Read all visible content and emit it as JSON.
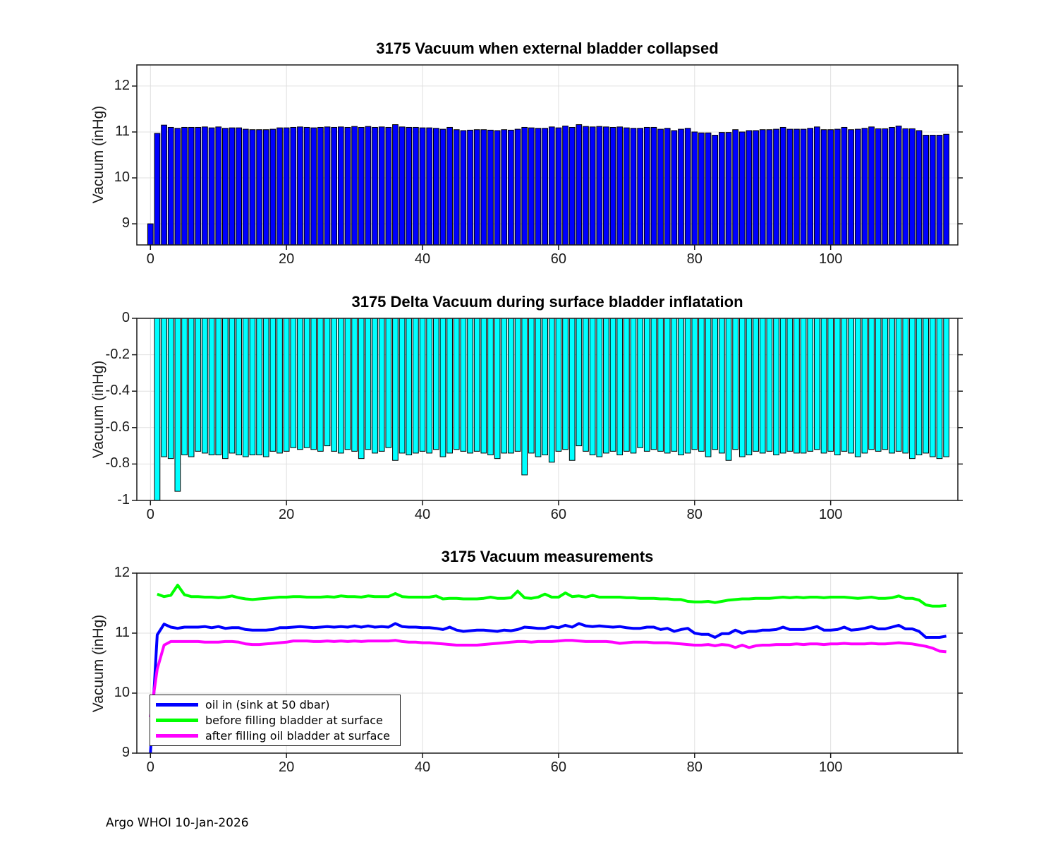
{
  "page": {
    "footer": "Argo WHOI 10-Jan-2026"
  },
  "colors": {
    "bar_blue": "#0000ff",
    "bar_cyan": "#00ffff",
    "line_blue": "#0000ff",
    "line_green": "#00ff00",
    "line_magenta": "#ff00ff",
    "axis": "#1a1a1a",
    "grid": "#e0e0e0"
  },
  "chart_data": [
    {
      "type": "bar",
      "title": "3175 Vacuum when external bladder collapsed",
      "ylabel": "Vacuum (inHg)",
      "color": "#0000ff",
      "grid": true,
      "xlim": [
        -2,
        118.7
      ],
      "ylim": [
        8.54,
        12.46
      ],
      "yticks": [
        9,
        10,
        11,
        12
      ],
      "xticks": [
        0,
        20,
        40,
        60,
        80,
        100
      ],
      "x_start": 0,
      "bar_base": "bottom",
      "values": [
        9.0,
        10.97,
        11.15,
        11.1,
        11.08,
        11.1,
        11.1,
        11.1,
        11.11,
        11.09,
        11.11,
        11.08,
        11.09,
        11.09,
        11.06,
        11.05,
        11.05,
        11.05,
        11.06,
        11.09,
        11.09,
        11.1,
        11.11,
        11.1,
        11.09,
        11.1,
        11.11,
        11.1,
        11.11,
        11.1,
        11.12,
        11.1,
        11.12,
        11.1,
        11.11,
        11.1,
        11.16,
        11.11,
        11.1,
        11.1,
        11.09,
        11.09,
        11.08,
        11.06,
        11.1,
        11.05,
        11.03,
        11.04,
        11.05,
        11.05,
        11.04,
        11.03,
        11.05,
        11.04,
        11.06,
        11.1,
        11.09,
        11.08,
        11.08,
        11.11,
        11.09,
        11.13,
        11.1,
        11.16,
        11.12,
        11.11,
        11.12,
        11.11,
        11.1,
        11.11,
        11.09,
        11.08,
        11.08,
        11.1,
        11.1,
        11.06,
        11.08,
        11.03,
        11.06,
        11.08,
        11.0,
        10.98,
        10.98,
        10.93,
        10.99,
        10.99,
        11.05,
        11.0,
        11.03,
        11.03,
        11.05,
        11.05,
        11.06,
        11.1,
        11.06,
        11.06,
        11.06,
        11.08,
        11.11,
        11.05,
        11.05,
        11.06,
        11.1,
        11.05,
        11.06,
        11.08,
        11.11,
        11.07,
        11.07,
        11.1,
        11.13,
        11.07,
        11.07,
        11.03,
        10.93,
        10.93,
        10.93,
        10.95
      ]
    },
    {
      "type": "bar",
      "title": "3175 Delta Vacuum during surface bladder inflatation",
      "ylabel": "Vacuum (inHg)",
      "color": "#00ffff",
      "grid": true,
      "xlim": [
        -2,
        118.7
      ],
      "ylim": [
        -1,
        0
      ],
      "yticks": [
        0,
        -0.2,
        -0.4,
        -0.6,
        -0.8,
        -1
      ],
      "xticks": [
        0,
        20,
        40,
        60,
        80,
        100
      ],
      "x_start": 1,
      "bar_base": 0,
      "values": [
        -1.0,
        -0.76,
        -0.77,
        -0.95,
        -0.75,
        -0.76,
        -0.73,
        -0.74,
        -0.75,
        -0.75,
        -0.77,
        -0.74,
        -0.75,
        -0.76,
        -0.75,
        -0.75,
        -0.76,
        -0.73,
        -0.74,
        -0.73,
        -0.71,
        -0.72,
        -0.71,
        -0.72,
        -0.73,
        -0.7,
        -0.73,
        -0.74,
        -0.72,
        -0.73,
        -0.77,
        -0.72,
        -0.74,
        -0.73,
        -0.71,
        -0.78,
        -0.74,
        -0.75,
        -0.74,
        -0.73,
        -0.74,
        -0.72,
        -0.76,
        -0.74,
        -0.72,
        -0.73,
        -0.74,
        -0.73,
        -0.74,
        -0.75,
        -0.77,
        -0.74,
        -0.74,
        -0.73,
        -0.86,
        -0.74,
        -0.76,
        -0.75,
        -0.79,
        -0.73,
        -0.72,
        -0.78,
        -0.7,
        -0.73,
        -0.75,
        -0.76,
        -0.74,
        -0.73,
        -0.75,
        -0.73,
        -0.74,
        -0.71,
        -0.73,
        -0.72,
        -0.73,
        -0.74,
        -0.73,
        -0.75,
        -0.74,
        -0.72,
        -0.73,
        -0.76,
        -0.72,
        -0.74,
        -0.78,
        -0.72,
        -0.76,
        -0.75,
        -0.73,
        -0.74,
        -0.73,
        -0.75,
        -0.74,
        -0.73,
        -0.74,
        -0.74,
        -0.73,
        -0.72,
        -0.74,
        -0.73,
        -0.75,
        -0.73,
        -0.74,
        -0.76,
        -0.74,
        -0.72,
        -0.73,
        -0.72,
        -0.74,
        -0.73,
        -0.74,
        -0.77,
        -0.75,
        -0.74,
        -0.76,
        -0.77,
        -0.76
      ]
    },
    {
      "type": "line",
      "title": "3175 Vacuum measurements",
      "ylabel": "Vacuum (inHg)",
      "grid": true,
      "xlim": [
        -2,
        118.7
      ],
      "ylim": [
        9,
        12
      ],
      "yticks": [
        9,
        10,
        11,
        12
      ],
      "xticks": [
        0,
        20,
        40,
        60,
        80,
        100
      ],
      "legend_position": "lower-left",
      "series": [
        {
          "name": "oil in (sink at 50 dbar)",
          "color": "#0000ff",
          "x_start": 0,
          "values": [
            9.0,
            10.97,
            11.15,
            11.1,
            11.08,
            11.1,
            11.1,
            11.1,
            11.11,
            11.09,
            11.11,
            11.08,
            11.09,
            11.09,
            11.06,
            11.05,
            11.05,
            11.05,
            11.06,
            11.09,
            11.09,
            11.1,
            11.11,
            11.1,
            11.09,
            11.1,
            11.11,
            11.1,
            11.11,
            11.1,
            11.12,
            11.1,
            11.12,
            11.1,
            11.11,
            11.1,
            11.16,
            11.11,
            11.1,
            11.1,
            11.09,
            11.09,
            11.08,
            11.06,
            11.1,
            11.05,
            11.03,
            11.04,
            11.05,
            11.05,
            11.04,
            11.03,
            11.05,
            11.04,
            11.06,
            11.1,
            11.09,
            11.08,
            11.08,
            11.11,
            11.09,
            11.13,
            11.1,
            11.16,
            11.12,
            11.11,
            11.12,
            11.11,
            11.1,
            11.11,
            11.09,
            11.08,
            11.08,
            11.1,
            11.1,
            11.06,
            11.08,
            11.03,
            11.06,
            11.08,
            11.0,
            10.98,
            10.98,
            10.93,
            10.99,
            10.99,
            11.05,
            11.0,
            11.03,
            11.03,
            11.05,
            11.05,
            11.06,
            11.1,
            11.06,
            11.06,
            11.06,
            11.08,
            11.11,
            11.05,
            11.05,
            11.06,
            11.1,
            11.05,
            11.06,
            11.08,
            11.11,
            11.07,
            11.07,
            11.1,
            11.13,
            11.07,
            11.07,
            11.03,
            10.93,
            10.93,
            10.93,
            10.95
          ]
        },
        {
          "name": "before filling bladder at surface",
          "color": "#00ff00",
          "x_start": 1,
          "values": [
            11.65,
            11.61,
            11.63,
            11.8,
            11.64,
            11.61,
            11.61,
            11.6,
            11.6,
            11.59,
            11.6,
            11.62,
            11.59,
            11.57,
            11.56,
            11.57,
            11.58,
            11.59,
            11.6,
            11.6,
            11.61,
            11.61,
            11.6,
            11.6,
            11.6,
            11.61,
            11.6,
            11.62,
            11.61,
            11.61,
            11.6,
            11.62,
            11.61,
            11.61,
            11.61,
            11.66,
            11.61,
            11.6,
            11.6,
            11.6,
            11.6,
            11.62,
            11.57,
            11.58,
            11.58,
            11.57,
            11.57,
            11.57,
            11.58,
            11.6,
            11.58,
            11.58,
            11.59,
            11.7,
            11.59,
            11.58,
            11.6,
            11.65,
            11.6,
            11.6,
            11.67,
            11.61,
            11.62,
            11.6,
            11.63,
            11.6,
            11.6,
            11.6,
            11.6,
            11.59,
            11.59,
            11.58,
            11.58,
            11.58,
            11.57,
            11.57,
            11.56,
            11.56,
            11.53,
            11.52,
            11.52,
            11.53,
            11.51,
            11.53,
            11.55,
            11.56,
            11.57,
            11.57,
            11.58,
            11.58,
            11.58,
            11.59,
            11.6,
            11.59,
            11.6,
            11.59,
            11.6,
            11.6,
            11.59,
            11.6,
            11.6,
            11.6,
            11.59,
            11.58,
            11.59,
            11.6,
            11.58,
            11.58,
            11.59,
            11.62,
            11.58,
            11.58,
            11.55,
            11.47,
            11.45,
            11.45,
            11.46
          ]
        },
        {
          "name": "after filling oil bladder at surface",
          "color": "#ff00ff",
          "x_start": 0,
          "values": [
            9.6,
            10.4,
            10.8,
            10.86,
            10.86,
            10.86,
            10.86,
            10.86,
            10.85,
            10.85,
            10.85,
            10.86,
            10.86,
            10.85,
            10.82,
            10.81,
            10.81,
            10.82,
            10.83,
            10.84,
            10.85,
            10.87,
            10.87,
            10.87,
            10.86,
            10.86,
            10.87,
            10.86,
            10.87,
            10.86,
            10.87,
            10.86,
            10.87,
            10.87,
            10.87,
            10.87,
            10.88,
            10.86,
            10.85,
            10.85,
            10.84,
            10.84,
            10.83,
            10.82,
            10.81,
            10.8,
            10.8,
            10.8,
            10.8,
            10.81,
            10.82,
            10.83,
            10.84,
            10.85,
            10.86,
            10.86,
            10.85,
            10.86,
            10.86,
            10.86,
            10.87,
            10.88,
            10.88,
            10.87,
            10.86,
            10.86,
            10.86,
            10.86,
            10.85,
            10.83,
            10.84,
            10.85,
            10.85,
            10.85,
            10.84,
            10.84,
            10.84,
            10.83,
            10.82,
            10.81,
            10.8,
            10.8,
            10.81,
            10.79,
            10.81,
            10.8,
            10.76,
            10.8,
            10.76,
            10.79,
            10.8,
            10.8,
            10.81,
            10.81,
            10.81,
            10.82,
            10.81,
            10.82,
            10.82,
            10.81,
            10.82,
            10.82,
            10.83,
            10.82,
            10.82,
            10.82,
            10.83,
            10.82,
            10.82,
            10.83,
            10.84,
            10.83,
            10.82,
            10.8,
            10.78,
            10.75,
            10.7,
            10.69
          ]
        }
      ]
    }
  ]
}
